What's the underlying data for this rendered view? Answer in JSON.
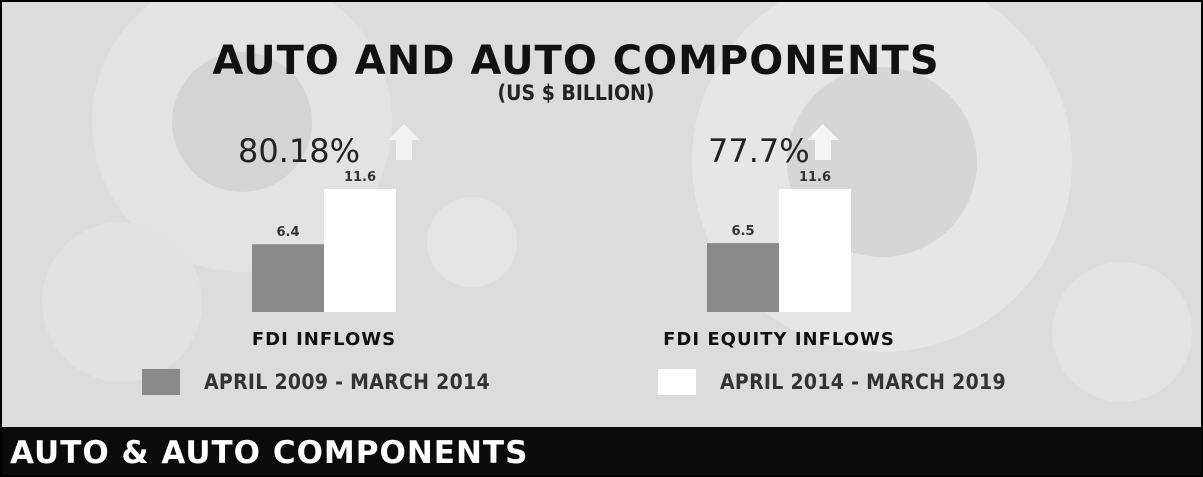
{
  "title": "AUTO AND AUTO COMPONENTS",
  "subtitle": "(US $ BILLION)",
  "banner": "AUTO & AUTO COMPONENTS",
  "colors": {
    "series_1": "#8a8a8a",
    "series_2": "#ffffff",
    "background": "#dcdcdc",
    "banner": "#0b0b0b"
  },
  "chart_data": {
    "type": "bar",
    "title": "AUTO AND AUTO COMPONENTS",
    "subtitle": "(US $ BILLION)",
    "categories": [
      "FDI INFLOWS",
      "FDI EQUITY INFLOWS"
    ],
    "series": [
      {
        "name": "APRIL 2009 - MARCH 2014",
        "values": [
          6.4,
          6.5
        ],
        "labels": [
          "6.4",
          "6.5"
        ]
      },
      {
        "name": "APRIL 2014 - MARCH 2019",
        "values": [
          11.6,
          11.6
        ],
        "labels": [
          "11.6",
          "11.6"
        ]
      }
    ],
    "growth": [
      "80.18%",
      "77.7%"
    ],
    "legend": [
      "APRIL 2009 - MARCH 2014",
      "APRIL 2014 - MARCH 2019"
    ],
    "grid": false,
    "legend_position": "bottom"
  }
}
